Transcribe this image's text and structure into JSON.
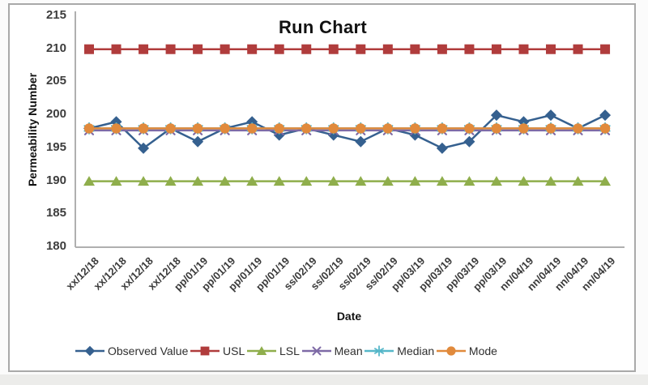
{
  "chart_data": {
    "type": "line",
    "title": "Run Chart",
    "xlabel": "Date",
    "ylabel": "Permeability Number",
    "ylim": [
      180,
      215
    ],
    "yticks": [
      215,
      210,
      205,
      200,
      195,
      190,
      185,
      180
    ],
    "grid": false,
    "legend_position": "bottom",
    "categories": [
      "xx/12/18",
      "xx/12/18",
      "xx/12/18",
      "xx/12/18",
      "pp/01/19",
      "pp/01/19",
      "pp/01/19",
      "pp/01/19",
      "ss/02/19",
      "ss/02/19",
      "ss/02/19",
      "ss/02/19",
      "pp/03/19",
      "pp/03/19",
      "pp/03/19",
      "pp/03/19",
      "nn/04/19",
      "nn/04/19",
      "nn/04/19",
      "nn/04/19"
    ],
    "series": [
      {
        "name": "Observed Value",
        "marker": "diamond",
        "color": "#35608F",
        "values": [
          198,
          199,
          195,
          198,
          196,
          198,
          199,
          197,
          198,
          197,
          196,
          198,
          197,
          195,
          196,
          200,
          199,
          200,
          198,
          200
        ]
      },
      {
        "name": "USL",
        "marker": "square",
        "color": "#B03C3C",
        "values": [
          210,
          210,
          210,
          210,
          210,
          210,
          210,
          210,
          210,
          210,
          210,
          210,
          210,
          210,
          210,
          210,
          210,
          210,
          210,
          210
        ]
      },
      {
        "name": "LSL",
        "marker": "triangle",
        "color": "#8FAE4C",
        "values": [
          190,
          190,
          190,
          190,
          190,
          190,
          190,
          190,
          190,
          190,
          190,
          190,
          190,
          190,
          190,
          190,
          190,
          190,
          190,
          190
        ]
      },
      {
        "name": "Mean",
        "marker": "x",
        "color": "#7E6AA6",
        "values": [
          197.7,
          197.7,
          197.7,
          197.7,
          197.7,
          197.7,
          197.7,
          197.7,
          197.7,
          197.7,
          197.7,
          197.7,
          197.7,
          197.7,
          197.7,
          197.7,
          197.7,
          197.7,
          197.7,
          197.7
        ]
      },
      {
        "name": "Median",
        "marker": "asterisk",
        "color": "#56B7C9",
        "values": [
          198,
          198,
          198,
          198,
          198,
          198,
          198,
          198,
          198,
          198,
          198,
          198,
          198,
          198,
          198,
          198,
          198,
          198,
          198,
          198
        ]
      },
      {
        "name": "Mode",
        "marker": "circle",
        "color": "#E18A3C",
        "values": [
          198,
          198,
          198,
          198,
          198,
          198,
          198,
          198,
          198,
          198,
          198,
          198,
          198,
          198,
          198,
          198,
          198,
          198,
          198,
          198
        ]
      }
    ],
    "style": {
      "axis_color": "#b0b0b0",
      "tick_label_color": "#3d3d3d",
      "title_color": "#121212",
      "frame_border_color": "#a9a9a9"
    }
  }
}
